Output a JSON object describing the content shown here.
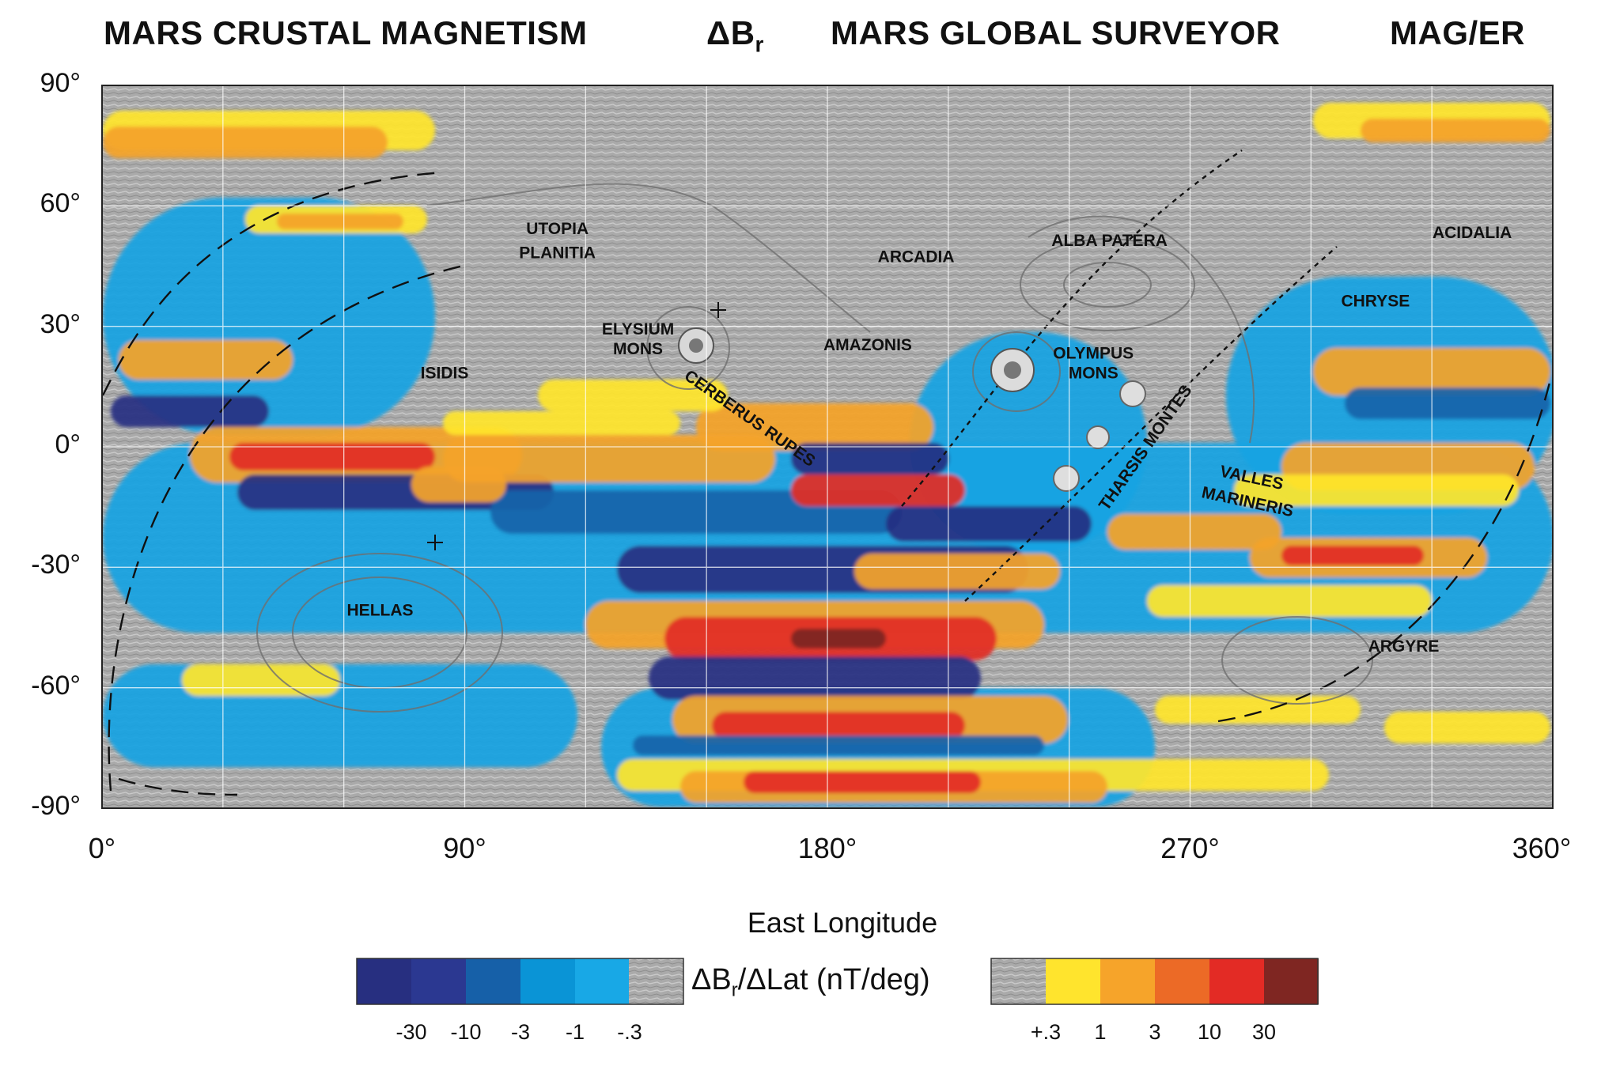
{
  "header": {
    "title_left": "MARS CRUSTAL MAGNETISM",
    "delta_symbol": "ΔB",
    "delta_sub": "r",
    "title_center": "MARS GLOBAL SURVEYOR",
    "title_right": "MAG/ER"
  },
  "axes": {
    "x_title": "East Longitude",
    "x_ticks": [
      "0°",
      "90°",
      "180°",
      "270°",
      "360°"
    ],
    "y_ticks": [
      "90°",
      "60°",
      "30°",
      "0°",
      "-30°",
      "-60°",
      "-90°"
    ],
    "x_range": [
      0,
      360
    ],
    "y_range": [
      -90,
      90
    ],
    "grid": true
  },
  "features": [
    {
      "name": "UTOPIA",
      "lon": 113,
      "lat": 53
    },
    {
      "name": "PLANITIA",
      "lon": 113,
      "lat": 47
    },
    {
      "name": "ARCADIA",
      "lon": 202,
      "lat": 46
    },
    {
      "name": "ALBA PATERA",
      "lon": 250,
      "lat": 50
    },
    {
      "name": "ACIDALIA",
      "lon": 340,
      "lat": 52
    },
    {
      "name": "CHRYSE",
      "lon": 316,
      "lat": 35
    },
    {
      "name": "ELYSIUM",
      "lon": 133,
      "lat": 28
    },
    {
      "name": "MONS",
      "lon": 133,
      "lat": 23
    },
    {
      "name": "AMAZONIS",
      "lon": 190,
      "lat": 24
    },
    {
      "name": "OLYMPUS",
      "lon": 246,
      "lat": 22
    },
    {
      "name": "MONS",
      "lon": 246,
      "lat": 17
    },
    {
      "name": "ISIDIS",
      "lon": 85,
      "lat": 17
    },
    {
      "name": "CERBERUS RUPES",
      "lon": 160,
      "lat": 6,
      "rot": 35
    },
    {
      "name": "THARSIS MONTES",
      "lon": 260,
      "lat": -1,
      "rot": -55
    },
    {
      "name": "VALLES",
      "lon": 285,
      "lat": -9,
      "rot": 12
    },
    {
      "name": "MARINERIS",
      "lon": 284,
      "lat": -15,
      "rot": 12
    },
    {
      "name": "HELLAS",
      "lon": 69,
      "lat": -42
    },
    {
      "name": "ARGYRE",
      "lon": 323,
      "lat": -51
    }
  ],
  "colorbar": {
    "title_prefix": "ΔB",
    "title_sub": "r",
    "title_suffix": "/ΔLat (nT/deg)",
    "negative_colors": [
      "#272f80",
      "#2b3891",
      "#1660a8",
      "#0a94d6",
      "#18a8e6"
    ],
    "positive_colors": [
      "#ffe42d",
      "#f6a42a",
      "#ec6a26",
      "#e32b25",
      "#7f2622"
    ],
    "negative_labels": [
      "-30",
      "-10",
      "-3",
      "-1",
      "-.3"
    ],
    "positive_labels": [
      "+.3",
      "1",
      "3",
      "10",
      "30"
    ]
  },
  "palette": {
    "terrain": "#a9a9a9",
    "deep_blue": "#262f82",
    "blue": "#1963aa",
    "cyan": "#17a3e2",
    "yellow": "#ffe52c",
    "orange": "#f4a32a",
    "red_orange": "#ea6726",
    "red": "#e22c25",
    "dark_red": "#7c2522"
  }
}
